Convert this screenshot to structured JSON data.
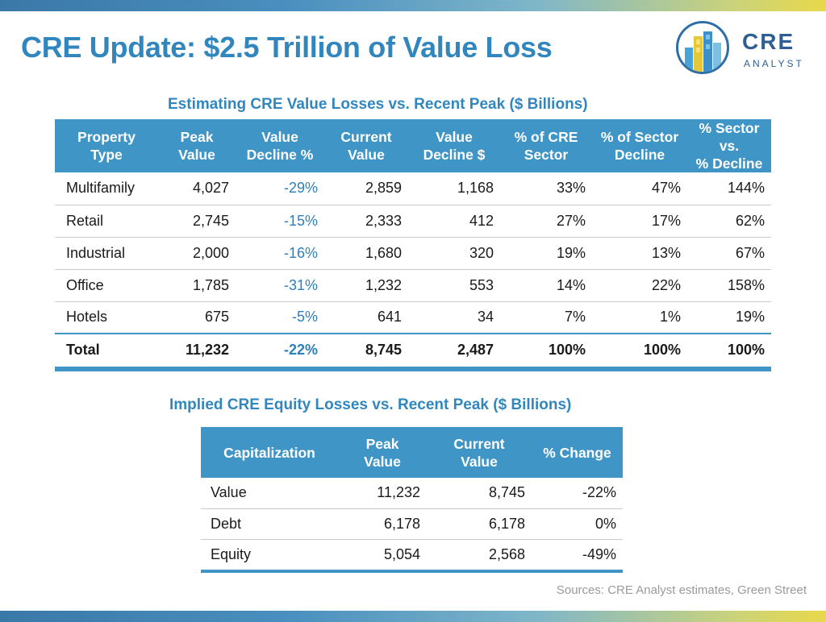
{
  "header": {
    "title": "CRE Update: $2.5 Trillion of Value Loss",
    "logo_main": "CRE",
    "logo_sub": "ANALYST"
  },
  "colors": {
    "accent": "#3187bd",
    "table_header": "#3f95c6",
    "negative_text": "#2f7fb8",
    "logo": "#2f5f92"
  },
  "value_table": {
    "title": "Estimating CRE Value Losses vs. Recent Peak ($ Billions)",
    "headers": [
      [
        "Property",
        "Type"
      ],
      [
        "Peak",
        "Value"
      ],
      [
        "Value",
        "Decline %"
      ],
      [
        "Current",
        "Value"
      ],
      [
        "Value",
        "Decline $"
      ],
      [
        "% of CRE",
        "Sector"
      ],
      [
        "% of Sector",
        "Decline"
      ],
      [
        "% Sector vs.",
        "% Decline"
      ]
    ],
    "rows": [
      [
        "Multifamily",
        "4,027",
        "-29%",
        "2,859",
        "1,168",
        "33%",
        "47%",
        "144%"
      ],
      [
        "Retail",
        "2,745",
        "-15%",
        "2,333",
        "412",
        "27%",
        "17%",
        "62%"
      ],
      [
        "Industrial",
        "2,000",
        "-16%",
        "1,680",
        "320",
        "19%",
        "13%",
        "67%"
      ],
      [
        "Office",
        "1,785",
        "-31%",
        "1,232",
        "553",
        "14%",
        "22%",
        "158%"
      ],
      [
        "Hotels",
        "675",
        "-5%",
        "641",
        "34",
        "7%",
        "1%",
        "19%"
      ]
    ],
    "total": [
      "Total",
      "11,232",
      "-22%",
      "8,745",
      "2,487",
      "100%",
      "100%",
      "100%"
    ]
  },
  "equity_table": {
    "title": "Implied CRE Equity Losses vs. Recent Peak ($ Billions)",
    "headers": [
      [
        "Capitalization"
      ],
      [
        "Peak",
        "Value"
      ],
      [
        "Current",
        "Value"
      ],
      [
        "% Change"
      ]
    ],
    "rows": [
      [
        "Value",
        "11,232",
        "8,745",
        "-22%"
      ],
      [
        "Debt",
        "6,178",
        "6,178",
        "0%"
      ],
      [
        "Equity",
        "5,054",
        "2,568",
        "-49%"
      ]
    ]
  },
  "footer": {
    "sources": "Sources: CRE Analyst estimates, Green Street"
  }
}
